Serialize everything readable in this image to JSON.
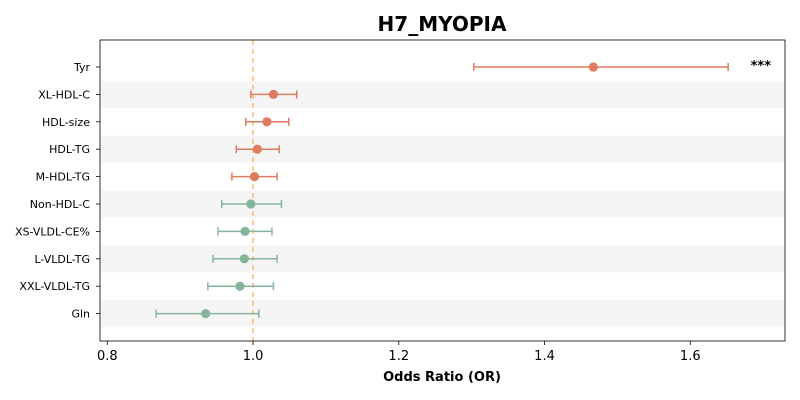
{
  "chart_data": {
    "type": "forest",
    "title": "H7_MYOPIA",
    "xlabel": "Odds Ratio (OR)",
    "xlim": [
      0.79,
      1.73
    ],
    "xticks": [
      0.8,
      1.0,
      1.2,
      1.4,
      1.6
    ],
    "xtick_labels": [
      "0.8",
      "1.0",
      "1.2",
      "1.4",
      "1.6"
    ],
    "reference_line": 1.0,
    "reference_color": "#f5c27e",
    "band_color": "#f5f5f5",
    "colors": {
      "positive": "#e07b5f",
      "negative": "#86b59b"
    },
    "rows": [
      {
        "label": "Tyr",
        "or": 1.467,
        "lo": 1.303,
        "hi": 1.652,
        "group": "positive",
        "sig": "***"
      },
      {
        "label": "XL-HDL-C",
        "or": 1.028,
        "lo": 0.997,
        "hi": 1.06,
        "group": "positive",
        "sig": ""
      },
      {
        "label": "HDL-size",
        "or": 1.019,
        "lo": 0.99,
        "hi": 1.049,
        "group": "positive",
        "sig": ""
      },
      {
        "label": "HDL-TG",
        "or": 1.006,
        "lo": 0.977,
        "hi": 1.036,
        "group": "positive",
        "sig": ""
      },
      {
        "label": "M-HDL-TG",
        "or": 1.002,
        "lo": 0.971,
        "hi": 1.033,
        "group": "positive",
        "sig": ""
      },
      {
        "label": "Non-HDL-C",
        "or": 0.997,
        "lo": 0.957,
        "hi": 1.039,
        "group": "negative",
        "sig": ""
      },
      {
        "label": "XS-VLDL-CE%",
        "or": 0.989,
        "lo": 0.952,
        "hi": 1.026,
        "group": "negative",
        "sig": ""
      },
      {
        "label": "L-VLDL-TG",
        "or": 0.988,
        "lo": 0.945,
        "hi": 1.033,
        "group": "negative",
        "sig": ""
      },
      {
        "label": "XXL-VLDL-TG",
        "or": 0.982,
        "lo": 0.938,
        "hi": 1.028,
        "group": "negative",
        "sig": ""
      },
      {
        "label": "Gln",
        "or": 0.935,
        "lo": 0.867,
        "hi": 1.008,
        "group": "negative",
        "sig": ""
      }
    ]
  }
}
